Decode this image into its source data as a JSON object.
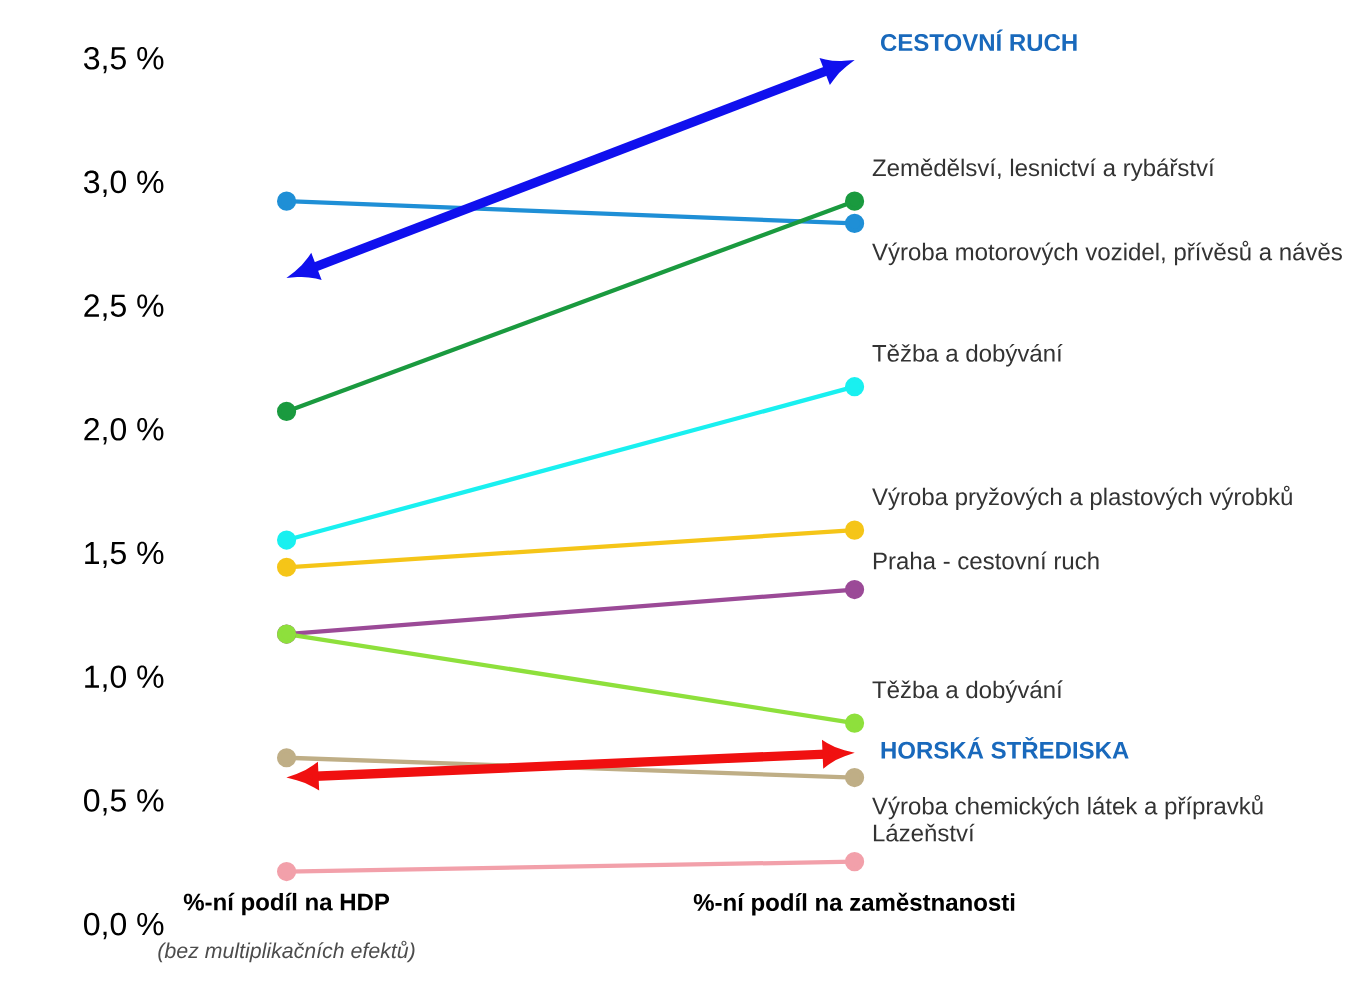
{
  "chart_data": {
    "type": "line",
    "categories": [
      "%-ní podíl na HDP",
      "%-ní podíl na zaměstnanosti"
    ],
    "series": [
      {
        "name": "Výroba motorových vozidel, přívěsů a návěs",
        "color": "#1f8fd6",
        "values": [
          2.93,
          2.84
        ]
      },
      {
        "name": "Zemědělsví, lesnictví a rybářství",
        "color": "#1a9a3f",
        "values": [
          2.08,
          2.93
        ]
      },
      {
        "name": "Těžba a dobývání",
        "color": "#19f0f0",
        "values": [
          1.56,
          2.18
        ]
      },
      {
        "name": "Výroba pryžových a plastových výrobků",
        "color": "#f5c518",
        "values": [
          1.45,
          1.6
        ]
      },
      {
        "name": "Praha - cestovní ruch",
        "color": "#9b4a97",
        "values": [
          1.18,
          1.36
        ]
      },
      {
        "name": "Těžba a dobývání",
        "color": "#8ee03c",
        "values": [
          1.18,
          0.82
        ]
      },
      {
        "name": "Výroba chemických látek a přípravků",
        "color": "#bfae86",
        "values": [
          0.68,
          0.6
        ]
      },
      {
        "name": "Lázeňství",
        "color": "#f2a0aa",
        "values": [
          0.22,
          0.26
        ]
      }
    ],
    "ylim": [
      0,
      3.5
    ],
    "yticks": [
      {
        "value": 0,
        "label": "0,0 %"
      },
      {
        "value": 0.5,
        "label": "0,5 %"
      },
      {
        "value": 1,
        "label": "1,0 %"
      },
      {
        "value": 1.5,
        "label": "1,5 %"
      },
      {
        "value": 2,
        "label": "2,0 %"
      },
      {
        "value": 2.5,
        "label": "2,5 %"
      },
      {
        "value": 3,
        "label": "3,0 %"
      },
      {
        "value": 3.5,
        "label": "3,5 %"
      }
    ],
    "annotations": [
      "CESTOVNÍ RUCH",
      "HORSKÁ STŘEDISKA",
      "(bez multiplikačních efektů)"
    ],
    "marker": "circle",
    "grid": false,
    "legend": false
  }
}
